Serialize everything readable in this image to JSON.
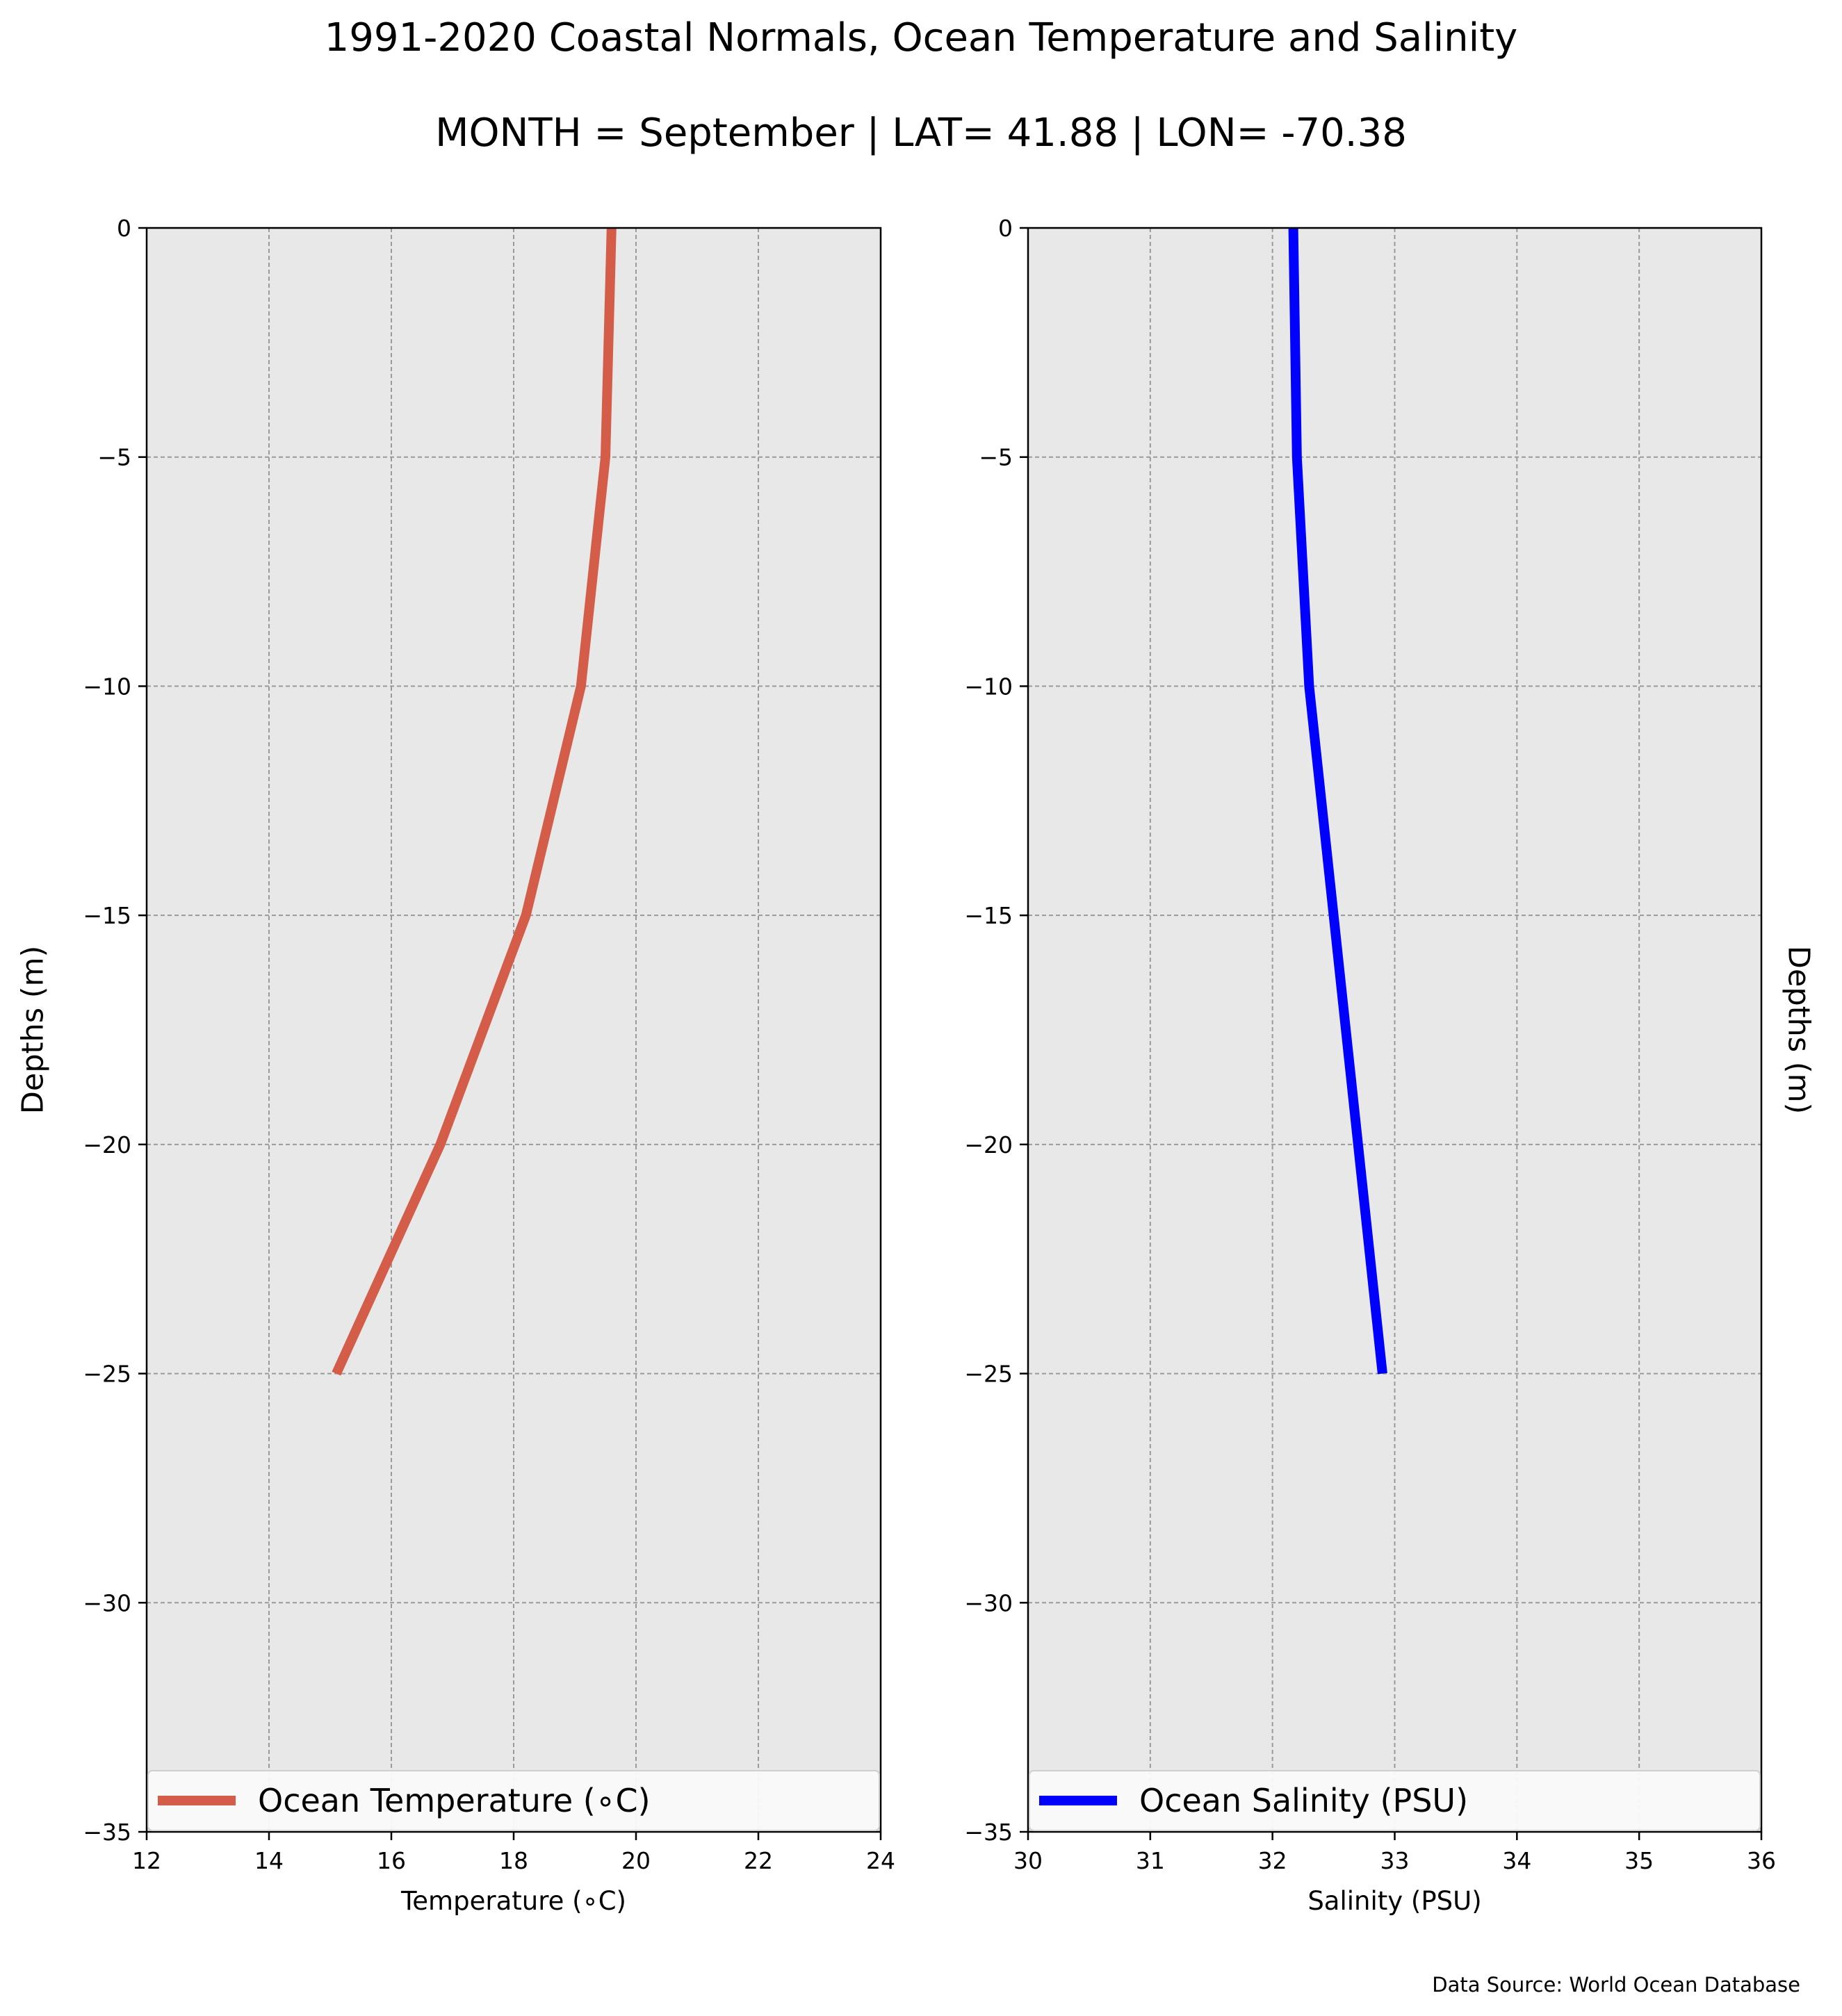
{
  "figure": {
    "title_line1": "1991-2020 Coastal Normals, Ocean Temperature and Salinity",
    "title_line2": "MONTH = September | LAT= 41.88 | LON= -70.38",
    "source": "Data Source: World Ocean Database"
  },
  "chart_data": [
    {
      "type": "line",
      "xlabel": "Temperature ($^\\circ$C)",
      "xlabel_display": "Temperature (∘C)",
      "ylabel": "Depths (m)",
      "xlim": [
        12,
        24
      ],
      "ylim": [
        -35,
        0
      ],
      "xticks": [
        12,
        14,
        16,
        18,
        20,
        22,
        24
      ],
      "yticks": [
        0,
        -5,
        -10,
        -15,
        -20,
        -25,
        -30,
        -35
      ],
      "ytick_labels": [
        "0",
        "−5",
        "−10",
        "−15",
        "−20",
        "−25",
        "−30",
        "−35"
      ],
      "grid": true,
      "legend_position": "bottom",
      "series": [
        {
          "name": "Ocean Temperature (∘C)",
          "color": "#d45d4a",
          "x": [
            19.6,
            19.5,
            19.1,
            18.2,
            16.8,
            15.1
          ],
          "y": [
            0,
            -5,
            -10,
            -15,
            -20,
            -25
          ]
        }
      ]
    },
    {
      "type": "line",
      "xlabel": "Salinity (PSU)",
      "xlabel_display": "Salinity (PSU)",
      "ylabel": "Depths (m)",
      "xlim": [
        30,
        36
      ],
      "ylim": [
        -35,
        0
      ],
      "xticks": [
        30,
        31,
        32,
        33,
        34,
        35,
        36
      ],
      "yticks": [
        0,
        -5,
        -10,
        -15,
        -20,
        -25,
        -30,
        -35
      ],
      "ytick_labels": [
        "0",
        "−5",
        "−10",
        "−15",
        "−20",
        "−25",
        "−30",
        "−35"
      ],
      "grid": true,
      "legend_position": "bottom",
      "series": [
        {
          "name": "Ocean Salinity (PSU)",
          "color": "#0000ff",
          "x": [
            32.17,
            32.2,
            32.3,
            32.5,
            32.7,
            32.9
          ],
          "y": [
            0,
            -5,
            -10,
            -15,
            -20,
            -25
          ]
        }
      ]
    }
  ]
}
